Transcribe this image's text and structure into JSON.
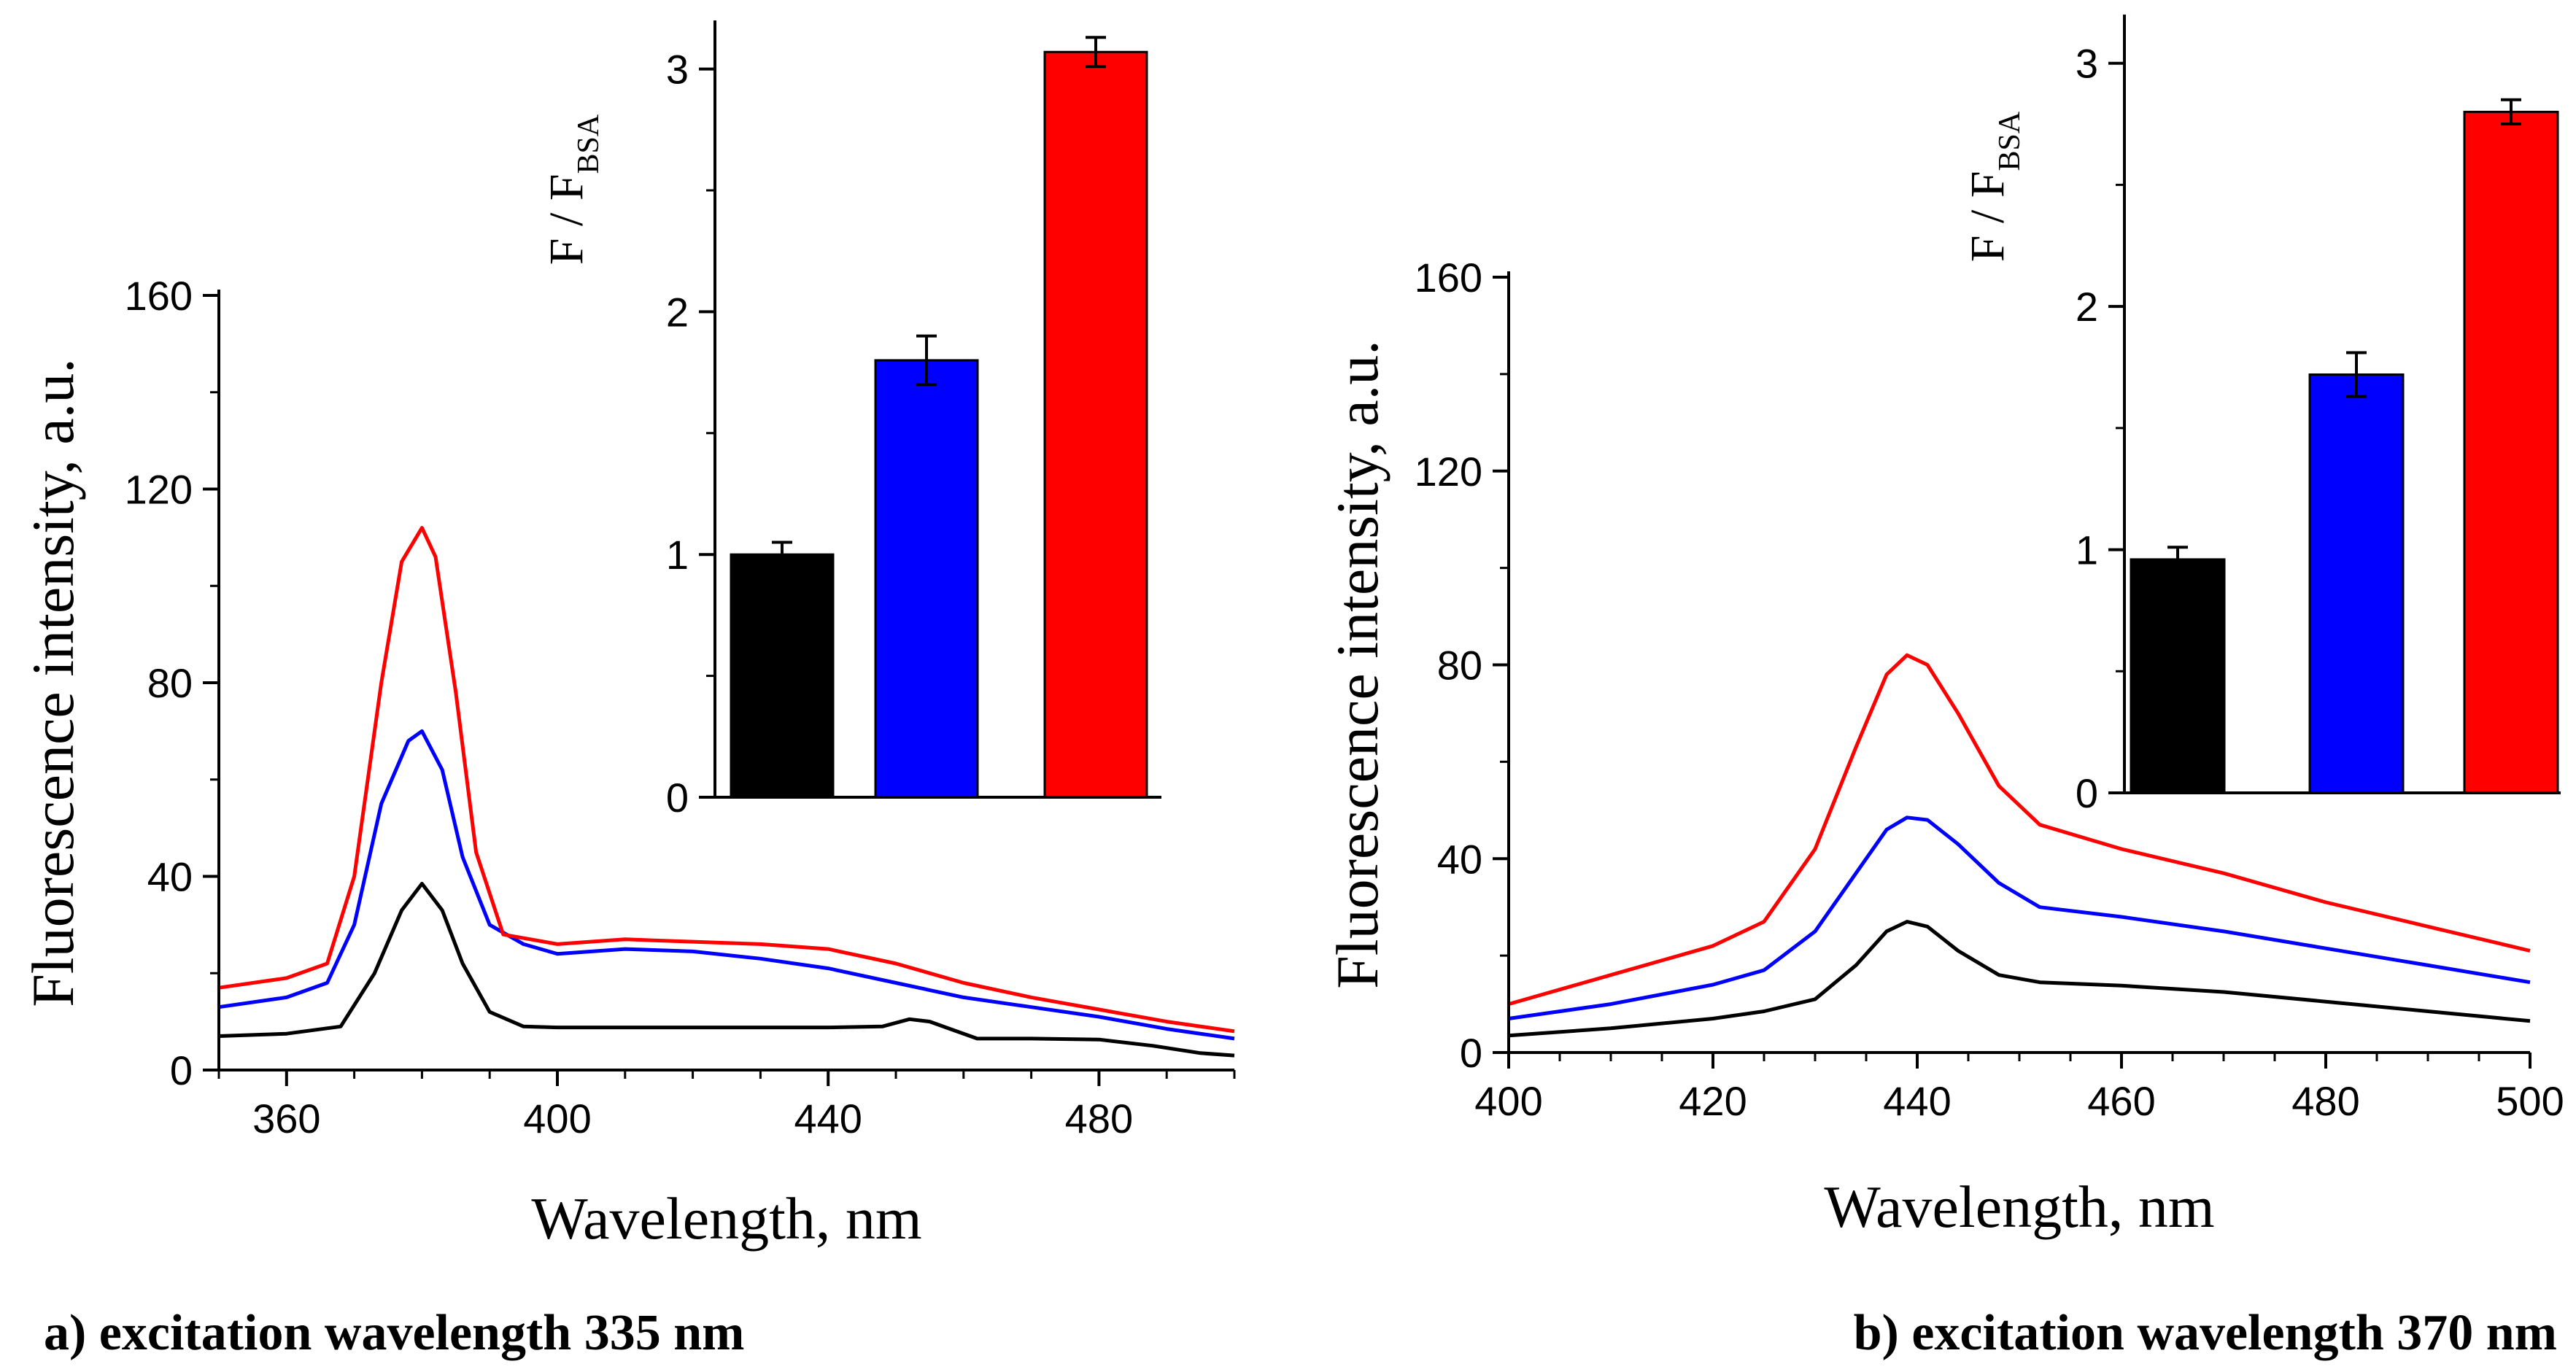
{
  "chart_data": [
    {
      "type": "line",
      "id": "a",
      "caption": "a) excitation wavelength 335 nm",
      "xlabel": "Wavelength, nm",
      "ylabel": "Fluorescence intensity, a.u.",
      "xlim": [
        350,
        500
      ],
      "ylim": [
        0,
        160
      ],
      "xticks": [
        360,
        400,
        440,
        480
      ],
      "yticks": [
        0,
        40,
        80,
        120,
        160
      ],
      "series": [
        {
          "name": "black",
          "color": "#000000",
          "points": [
            [
              350,
              7
            ],
            [
              360,
              7.5
            ],
            [
              368,
              9
            ],
            [
              373,
              20
            ],
            [
              377,
              33
            ],
            [
              380,
              38.5
            ],
            [
              383,
              33
            ],
            [
              386,
              22
            ],
            [
              390,
              12
            ],
            [
              395,
              9
            ],
            [
              400,
              8.8
            ],
            [
              420,
              8.8
            ],
            [
              440,
              8.8
            ],
            [
              448,
              9
            ],
            [
              452,
              10.5
            ],
            [
              455,
              10
            ],
            [
              458,
              8.5
            ],
            [
              462,
              6.5
            ],
            [
              470,
              6.5
            ],
            [
              480,
              6.3
            ],
            [
              488,
              5
            ],
            [
              495,
              3.5
            ],
            [
              500,
              3
            ]
          ]
        },
        {
          "name": "blue",
          "color": "#0000ff",
          "points": [
            [
              350,
              13
            ],
            [
              360,
              15
            ],
            [
              366,
              18
            ],
            [
              370,
              30
            ],
            [
              374,
              55
            ],
            [
              378,
              68
            ],
            [
              380,
              70
            ],
            [
              383,
              62
            ],
            [
              386,
              44
            ],
            [
              390,
              30
            ],
            [
              395,
              26
            ],
            [
              400,
              24
            ],
            [
              410,
              25
            ],
            [
              420,
              24.5
            ],
            [
              430,
              23
            ],
            [
              440,
              21
            ],
            [
              450,
              18
            ],
            [
              460,
              15
            ],
            [
              470,
              13
            ],
            [
              480,
              11
            ],
            [
              490,
              8.5
            ],
            [
              500,
              6.5
            ]
          ]
        },
        {
          "name": "red",
          "color": "#ff0000",
          "points": [
            [
              350,
              17
            ],
            [
              360,
              19
            ],
            [
              366,
              22
            ],
            [
              370,
              40
            ],
            [
              374,
              80
            ],
            [
              377,
              105
            ],
            [
              380,
              112
            ],
            [
              382,
              106
            ],
            [
              385,
              78
            ],
            [
              388,
              45
            ],
            [
              392,
              28
            ],
            [
              400,
              26
            ],
            [
              410,
              27
            ],
            [
              420,
              26.5
            ],
            [
              430,
              26
            ],
            [
              440,
              25
            ],
            [
              450,
              22
            ],
            [
              460,
              18
            ],
            [
              470,
              15
            ],
            [
              480,
              12.5
            ],
            [
              490,
              10
            ],
            [
              500,
              8
            ]
          ]
        }
      ]
    },
    {
      "type": "bar",
      "id": "a-inset",
      "ylabel": "F / F",
      "ylabel_subscript": "BSA",
      "ylim": [
        0,
        3.2
      ],
      "yticks": [
        0,
        1,
        2,
        3
      ],
      "categories": [
        "",
        "",
        ""
      ],
      "values": [
        1.0,
        1.8,
        3.07
      ],
      "errors": [
        0.05,
        0.1,
        0.06
      ],
      "colors": [
        "#000000",
        "#0000ff",
        "#ff0000"
      ]
    },
    {
      "type": "line",
      "id": "b",
      "caption": "b) excitation wavelength 370 nm",
      "xlabel": "Wavelength, nm",
      "ylabel": "Fluorescence intensity, a.u.",
      "xlim": [
        400,
        500
      ],
      "ylim": [
        0,
        160
      ],
      "xticks": [
        400,
        420,
        440,
        460,
        480,
        500
      ],
      "yticks": [
        0,
        40,
        80,
        120,
        160
      ],
      "series": [
        {
          "name": "black",
          "color": "#000000",
          "points": [
            [
              400,
              3.5
            ],
            [
              410,
              5
            ],
            [
              420,
              7
            ],
            [
              425,
              8.5
            ],
            [
              430,
              11
            ],
            [
              434,
              18
            ],
            [
              437,
              25
            ],
            [
              439,
              27
            ],
            [
              441,
              26
            ],
            [
              444,
              21
            ],
            [
              448,
              16
            ],
            [
              452,
              14.5
            ],
            [
              460,
              13.8
            ],
            [
              470,
              12.5
            ],
            [
              480,
              10.5
            ],
            [
              490,
              8.5
            ],
            [
              500,
              6.5
            ]
          ]
        },
        {
          "name": "blue",
          "color": "#0000ff",
          "points": [
            [
              400,
              7
            ],
            [
              410,
              10
            ],
            [
              420,
              14
            ],
            [
              425,
              17
            ],
            [
              430,
              25
            ],
            [
              434,
              37
            ],
            [
              437,
              46
            ],
            [
              439,
              48.5
            ],
            [
              441,
              48
            ],
            [
              444,
              43
            ],
            [
              448,
              35
            ],
            [
              452,
              30
            ],
            [
              460,
              28
            ],
            [
              470,
              25
            ],
            [
              480,
              21.5
            ],
            [
              490,
              18
            ],
            [
              500,
              14.5
            ]
          ]
        },
        {
          "name": "red",
          "color": "#ff0000",
          "points": [
            [
              400,
              10
            ],
            [
              410,
              16
            ],
            [
              420,
              22
            ],
            [
              425,
              27
            ],
            [
              430,
              42
            ],
            [
              434,
              63
            ],
            [
              437,
              78
            ],
            [
              439,
              82
            ],
            [
              441,
              80
            ],
            [
              444,
              70
            ],
            [
              448,
              55
            ],
            [
              452,
              47
            ],
            [
              460,
              42
            ],
            [
              470,
              37
            ],
            [
              480,
              31
            ],
            [
              490,
              26
            ],
            [
              500,
              21
            ]
          ]
        }
      ]
    },
    {
      "type": "bar",
      "id": "b-inset",
      "ylabel": "F / F",
      "ylabel_subscript": "BSA",
      "ylim": [
        0,
        3.2
      ],
      "yticks": [
        0,
        1,
        2,
        3
      ],
      "categories": [
        "",
        "",
        ""
      ],
      "values": [
        0.96,
        1.72,
        2.8
      ],
      "errors": [
        0.05,
        0.09,
        0.05
      ],
      "colors": [
        "#000000",
        "#0000ff",
        "#ff0000"
      ]
    }
  ]
}
